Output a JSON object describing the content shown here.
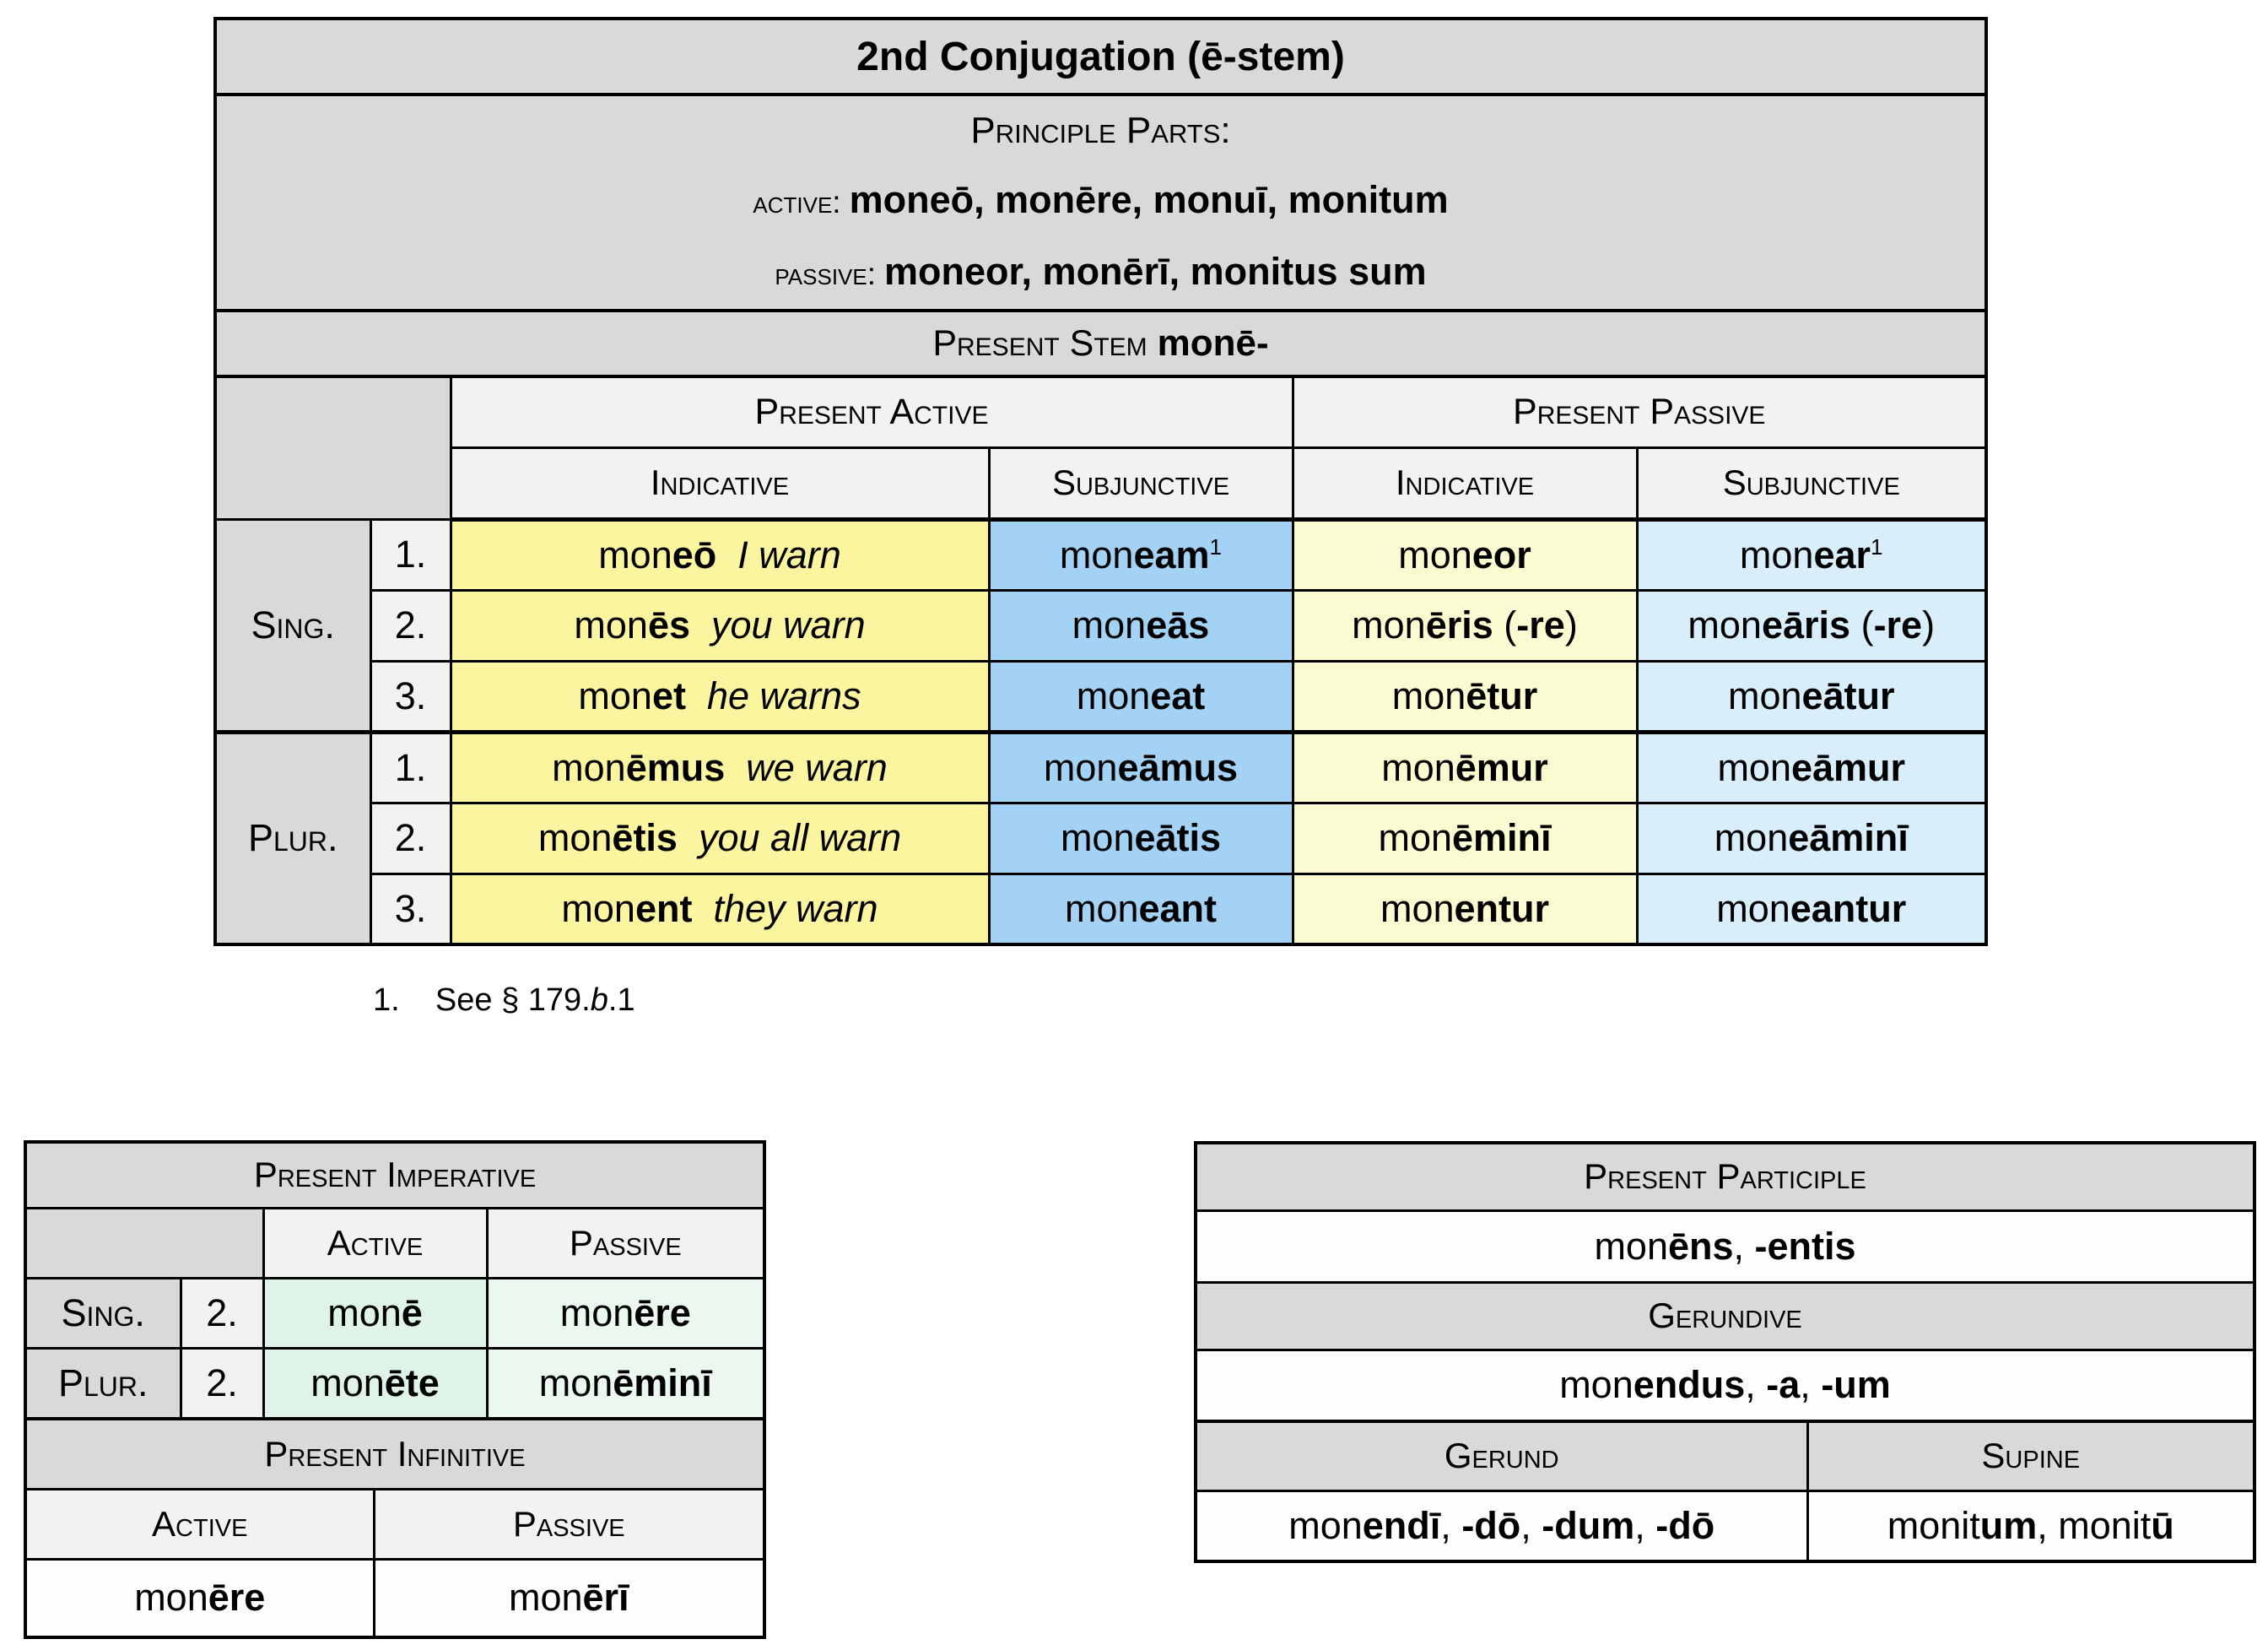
{
  "colors": {
    "header_gray": "#d9d9d9",
    "subheader_gray": "#f2f2f2",
    "active_indicative_yellow": "#fbf5a0",
    "active_subjunctive_blue": "#a3d2f4",
    "passive_indicative_cream": "#fbfbd2",
    "passive_subjunctive_blue": "#d9eefb",
    "imperative_active_green": "#dff4e6",
    "imperative_passive_green": "#ebf8f0",
    "border_black": "#000000",
    "page_white": "#ffffff"
  },
  "main": {
    "title": "2nd Conjugation (ē-stem)",
    "pp": {
      "heading": "Principle Parts:",
      "active_label": "active:",
      "active_forms": "moneō, monēre, monuī, monitum",
      "passive_label": "passive:",
      "passive_forms": "moneor, monērī, monitus sum"
    },
    "stem_label": "Present Stem",
    "stem_value": "monē-",
    "groups": [
      "Present Active",
      "Present Passive"
    ],
    "col_headers": [
      "Indicative",
      "Subjunctive",
      "Indicative",
      "Subjunctive"
    ],
    "row_groups": [
      "Sing.",
      "Plur."
    ],
    "rows": [
      {
        "person": "1.",
        "active_ind": [
          {
            "t": "mon"
          },
          {
            "t": "eō",
            "b": true
          },
          {
            "t": "  "
          },
          {
            "t": "I warn",
            "i": true
          }
        ],
        "active_subj": [
          {
            "t": "mon"
          },
          {
            "t": "eam",
            "b": true
          },
          {
            "t": "1",
            "sup": true
          }
        ],
        "passive_ind": [
          {
            "t": "mon"
          },
          {
            "t": "eor",
            "b": true
          }
        ],
        "passive_subj": [
          {
            "t": "mon"
          },
          {
            "t": "ear",
            "b": true
          },
          {
            "t": "1",
            "sup": true
          }
        ]
      },
      {
        "person": "2.",
        "active_ind": [
          {
            "t": "mon"
          },
          {
            "t": "ēs",
            "b": true
          },
          {
            "t": "  "
          },
          {
            "t": "you warn",
            "i": true
          }
        ],
        "active_subj": [
          {
            "t": "mon"
          },
          {
            "t": "eās",
            "b": true
          }
        ],
        "passive_ind": [
          {
            "t": "mon"
          },
          {
            "t": "ēris",
            "b": true
          },
          {
            "t": " ("
          },
          {
            "t": "-re",
            "b": true
          },
          {
            "t": ")"
          }
        ],
        "passive_subj": [
          {
            "t": "mon"
          },
          {
            "t": "eāris",
            "b": true
          },
          {
            "t": " ("
          },
          {
            "t": "-re",
            "b": true
          },
          {
            "t": ")"
          }
        ]
      },
      {
        "person": "3.",
        "active_ind": [
          {
            "t": "mon"
          },
          {
            "t": "et",
            "b": true
          },
          {
            "t": "  "
          },
          {
            "t": "he warns",
            "i": true
          }
        ],
        "active_subj": [
          {
            "t": "mon"
          },
          {
            "t": "eat",
            "b": true
          }
        ],
        "passive_ind": [
          {
            "t": "mon"
          },
          {
            "t": "ētur",
            "b": true
          }
        ],
        "passive_subj": [
          {
            "t": "mon"
          },
          {
            "t": "eātur",
            "b": true
          }
        ]
      },
      {
        "person": "1.",
        "active_ind": [
          {
            "t": "mon"
          },
          {
            "t": "ēmus",
            "b": true
          },
          {
            "t": "  "
          },
          {
            "t": "we warn",
            "i": true
          }
        ],
        "active_subj": [
          {
            "t": "mon"
          },
          {
            "t": "eāmus",
            "b": true
          }
        ],
        "passive_ind": [
          {
            "t": "mon"
          },
          {
            "t": "ēmur",
            "b": true
          }
        ],
        "passive_subj": [
          {
            "t": "mon"
          },
          {
            "t": "eāmur",
            "b": true
          }
        ]
      },
      {
        "person": "2.",
        "active_ind": [
          {
            "t": "mon"
          },
          {
            "t": "ētis",
            "b": true
          },
          {
            "t": "  "
          },
          {
            "t": "you all warn",
            "i": true
          }
        ],
        "active_subj": [
          {
            "t": "mon"
          },
          {
            "t": "eātis",
            "b": true
          }
        ],
        "passive_ind": [
          {
            "t": "mon"
          },
          {
            "t": "ēminī",
            "b": true
          }
        ],
        "passive_subj": [
          {
            "t": "mon"
          },
          {
            "t": "eāminī",
            "b": true
          }
        ]
      },
      {
        "person": "3.",
        "active_ind": [
          {
            "t": "mon"
          },
          {
            "t": "ent",
            "b": true
          },
          {
            "t": "  "
          },
          {
            "t": "they warn",
            "i": true
          }
        ],
        "active_subj": [
          {
            "t": "mon"
          },
          {
            "t": "eant",
            "b": true
          }
        ],
        "passive_ind": [
          {
            "t": "mon"
          },
          {
            "t": "entur",
            "b": true
          }
        ],
        "passive_subj": [
          {
            "t": "mon"
          },
          {
            "t": "eantur",
            "b": true
          }
        ]
      }
    ],
    "footnote": [
      {
        "t": "1.    See § 179."
      },
      {
        "t": "b",
        "i": true
      },
      {
        "t": ".1"
      }
    ]
  },
  "imperative": {
    "title": "Present Imperative",
    "col_headers": [
      "Active",
      "Passive"
    ],
    "rows": [
      {
        "group": "Sing.",
        "person": "2.",
        "active": [
          {
            "t": "mon"
          },
          {
            "t": "ē",
            "b": true
          }
        ],
        "passive": [
          {
            "t": "mon"
          },
          {
            "t": "ēre",
            "b": true
          }
        ]
      },
      {
        "group": "Plur.",
        "person": "2.",
        "active": [
          {
            "t": "mon"
          },
          {
            "t": "ēte",
            "b": true
          }
        ],
        "passive": [
          {
            "t": "mon"
          },
          {
            "t": "ēminī",
            "b": true
          }
        ]
      }
    ]
  },
  "infinitive": {
    "title": "Present Infinitive",
    "col_headers": [
      "Active",
      "Passive"
    ],
    "active_form": [
      {
        "t": "mon"
      },
      {
        "t": "ēre",
        "b": true
      }
    ],
    "passive_form": [
      {
        "t": "mon"
      },
      {
        "t": "ērī",
        "b": true
      }
    ]
  },
  "participle": {
    "title": "Present Participle",
    "form": [
      {
        "t": "mon"
      },
      {
        "t": "ēns",
        "b": true
      },
      {
        "t": ", "
      },
      {
        "t": "-entis",
        "b": true
      }
    ]
  },
  "gerundive": {
    "title": "Gerundive",
    "form": [
      {
        "t": "mon"
      },
      {
        "t": "endus",
        "b": true
      },
      {
        "t": ", "
      },
      {
        "t": "-a",
        "b": true
      },
      {
        "t": ", "
      },
      {
        "t": "-um",
        "b": true
      }
    ]
  },
  "gerund_supine": {
    "gerund_title": "Gerund",
    "supine_title": "Supine",
    "gerund_form": [
      {
        "t": "mon"
      },
      {
        "t": "endī",
        "b": true
      },
      {
        "t": ", "
      },
      {
        "t": "-dō",
        "b": true
      },
      {
        "t": ", "
      },
      {
        "t": "-dum",
        "b": true
      },
      {
        "t": ", "
      },
      {
        "t": "-dō",
        "b": true
      }
    ],
    "supine_form": [
      {
        "t": "monit"
      },
      {
        "t": "um",
        "b": true
      },
      {
        "t": ", monit"
      },
      {
        "t": "ū",
        "b": true
      }
    ]
  }
}
